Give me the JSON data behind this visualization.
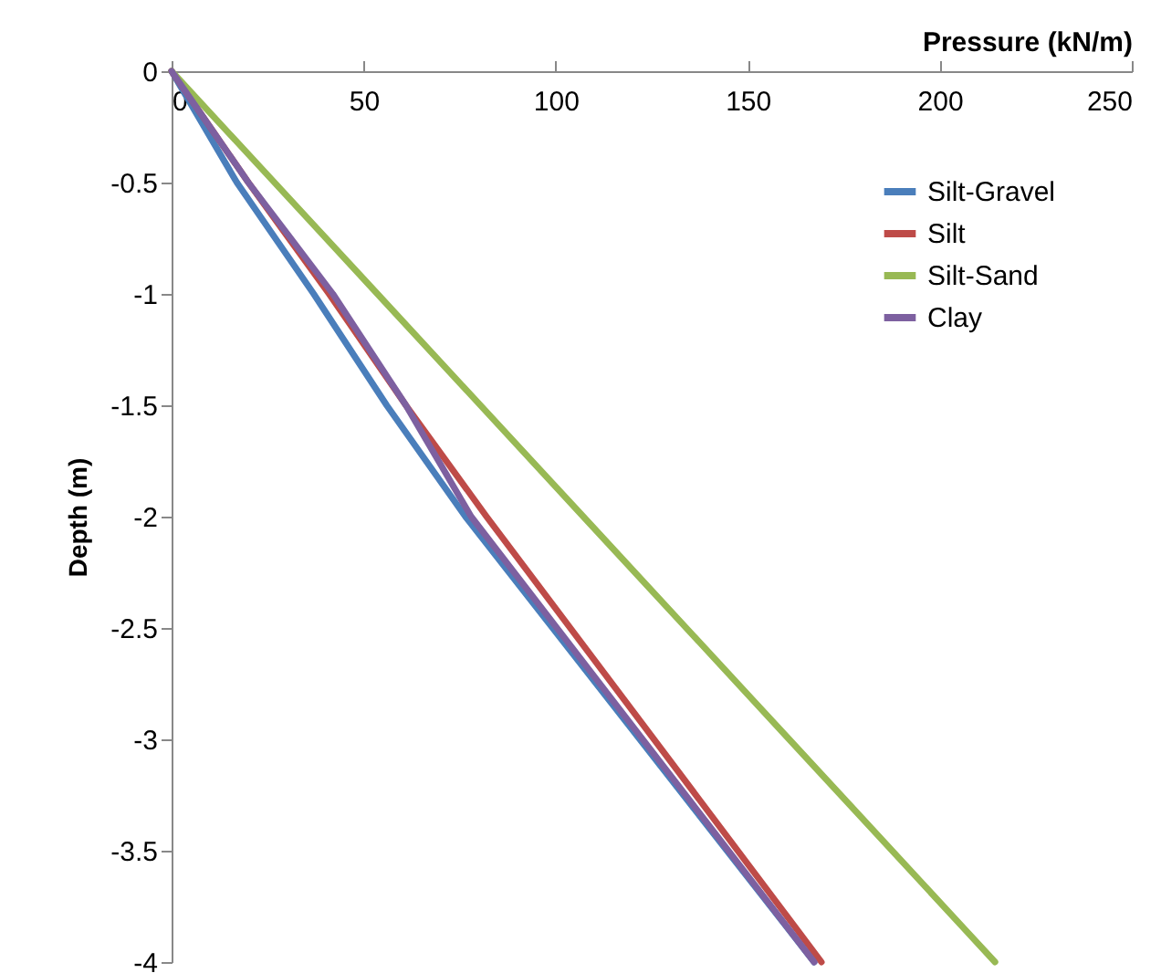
{
  "chart_data": {
    "type": "line",
    "xlabel": "Pressure (kN/m)",
    "ylabel": "Depth (m)",
    "xlim": [
      0,
      250
    ],
    "xticks": [
      0,
      50,
      100,
      150,
      200,
      250
    ],
    "ylim": [
      -4,
      0
    ],
    "yticks": [
      0,
      -0.5,
      -1,
      -1.5,
      -2,
      -2.5,
      -3,
      -3.5,
      -4
    ],
    "grid": false,
    "legend": "top right",
    "line_style": "solid",
    "marker": "none",
    "series": [
      {
        "name": "Silt-Gravel",
        "color": "#4a7ebb",
        "x": [
          0,
          17,
          37,
          56,
          76.5,
          167.3
        ],
        "values": [
          0,
          -0.5,
          -1,
          -1.5,
          -2,
          -4
        ]
      },
      {
        "name": "Silt",
        "color": "#be4b48",
        "x": [
          0,
          20,
          41,
          61,
          82,
          169.2
        ],
        "values": [
          0,
          -0.5,
          -1,
          -1.5,
          -2,
          -4
        ]
      },
      {
        "name": "Silt-Sand",
        "color": "#98b954",
        "x": [
          0,
          53.6,
          107.2,
          160.8,
          214.4
        ],
        "values": [
          0,
          -1,
          -2,
          -3,
          -4
        ]
      },
      {
        "name": "Clay",
        "color": "#7d60a0",
        "x": [
          0,
          20,
          42,
          61,
          78,
          167.3
        ],
        "values": [
          0,
          -0.5,
          -1,
          -1.5,
          -2,
          -4
        ]
      }
    ]
  }
}
